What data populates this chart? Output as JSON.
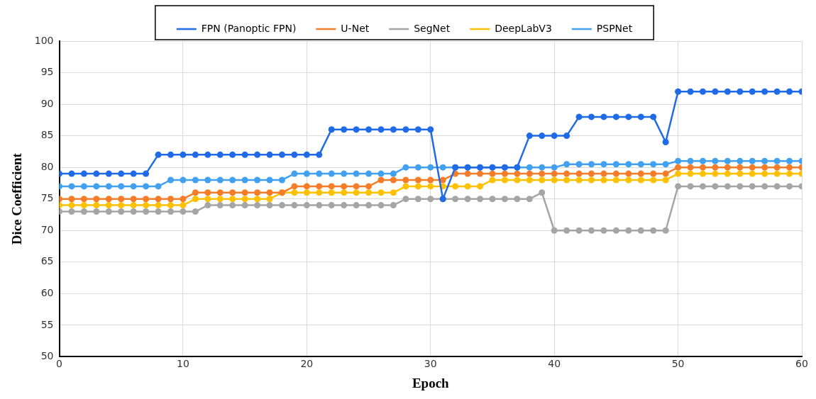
{
  "chart_data": {
    "type": "line",
    "xlabel": "Epoch",
    "ylabel": "Dice Coefficient",
    "x": [
      0,
      1,
      2,
      3,
      4,
      5,
      6,
      7,
      8,
      9,
      10,
      11,
      12,
      13,
      14,
      15,
      16,
      17,
      18,
      19,
      20,
      21,
      22,
      23,
      24,
      25,
      26,
      27,
      28,
      29,
      30,
      31,
      32,
      33,
      34,
      35,
      36,
      37,
      38,
      39,
      40,
      41,
      42,
      43,
      44,
      45,
      46,
      47,
      48,
      49,
      50,
      51,
      52,
      53,
      54,
      55,
      56,
      57,
      58,
      59,
      60
    ],
    "series": [
      {
        "name": "FPN (Panoptic FPN)",
        "color": "#1f6ae6",
        "values": [
          79,
          79,
          79,
          79,
          79,
          79,
          79,
          79,
          82,
          82,
          82,
          82,
          82,
          82,
          82,
          82,
          82,
          82,
          82,
          82,
          82,
          82,
          86,
          86,
          86,
          86,
          86,
          86,
          86,
          86,
          86,
          75,
          80,
          80,
          80,
          80,
          80,
          80,
          85,
          85,
          85,
          85,
          88,
          88,
          88,
          88,
          88,
          88,
          88,
          84,
          92,
          92,
          92,
          92,
          92,
          92,
          92,
          92,
          92,
          92,
          92
        ]
      },
      {
        "name": "U-Net",
        "color": "#f57c28",
        "values": [
          75,
          75,
          75,
          75,
          75,
          75,
          75,
          75,
          75,
          75,
          75,
          76,
          76,
          76,
          76,
          76,
          76,
          76,
          76,
          77,
          77,
          77,
          77,
          77,
          77,
          77,
          78,
          78,
          78,
          78,
          78,
          78,
          79,
          79,
          79,
          79,
          79,
          79,
          79,
          79,
          79,
          79,
          79,
          79,
          79,
          79,
          79,
          79,
          79,
          79,
          80,
          80,
          80,
          80,
          80,
          80,
          80,
          80,
          80,
          80,
          80
        ]
      },
      {
        "name": "SegNet",
        "color": "#a5a5a5",
        "values": [
          73,
          73,
          73,
          73,
          73,
          73,
          73,
          73,
          73,
          73,
          73,
          73,
          74,
          74,
          74,
          74,
          74,
          74,
          74,
          74,
          74,
          74,
          74,
          74,
          74,
          74,
          74,
          74,
          75,
          75,
          75,
          75,
          75,
          75,
          75,
          75,
          75,
          75,
          75,
          76,
          70,
          70,
          70,
          70,
          70,
          70,
          70,
          70,
          70,
          70,
          77,
          77,
          77,
          77,
          77,
          77,
          77,
          77,
          77,
          77,
          77
        ]
      },
      {
        "name": "DeepLabV3",
        "color": "#ffc000",
        "values": [
          74,
          74,
          74,
          74,
          74,
          74,
          74,
          74,
          74,
          74,
          74,
          75,
          75,
          75,
          75,
          75,
          75,
          75,
          76,
          76,
          76,
          76,
          76,
          76,
          76,
          76,
          76,
          76,
          77,
          77,
          77,
          77,
          77,
          77,
          77,
          78,
          78,
          78,
          78,
          78,
          78,
          78,
          78,
          78,
          78,
          78,
          78,
          78,
          78,
          78,
          79,
          79,
          79,
          79,
          79,
          79,
          79,
          79,
          79,
          79,
          79
        ]
      },
      {
        "name": "PSPNet",
        "color": "#42a0f0",
        "values": [
          77,
          77,
          77,
          77,
          77,
          77,
          77,
          77,
          77,
          78,
          78,
          78,
          78,
          78,
          78,
          78,
          78,
          78,
          78,
          79,
          79,
          79,
          79,
          79,
          79,
          79,
          79,
          79,
          80,
          80,
          80,
          80,
          80,
          80,
          80,
          80,
          80,
          80,
          80,
          80,
          80,
          80.5,
          80.5,
          80.5,
          80.5,
          80.5,
          80.5,
          80.5,
          80.5,
          80.5,
          81,
          81,
          81,
          81,
          81,
          81,
          81,
          81,
          81,
          81,
          81
        ]
      }
    ],
    "xlim": [
      0,
      60
    ],
    "xticks": [
      0,
      10,
      20,
      30,
      40,
      50,
      60
    ],
    "ylim": [
      50,
      100
    ],
    "yticks": [
      50,
      55,
      60,
      65,
      70,
      75,
      80,
      85,
      90,
      95,
      100
    ],
    "grid": true,
    "legend": "top",
    "marker": "circle",
    "line_style": "solid"
  }
}
